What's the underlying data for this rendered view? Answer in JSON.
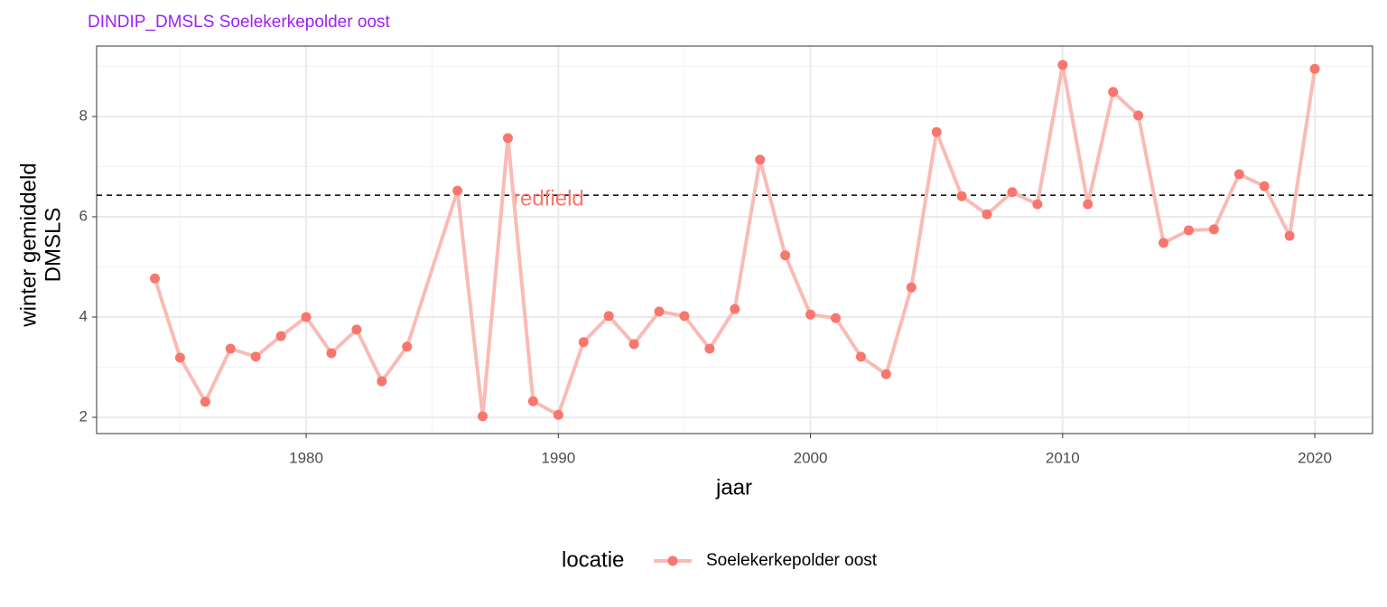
{
  "chart_data": {
    "type": "line",
    "title": "DINDIP_DMSLS Soelekerkepolder oost",
    "xlabel": "jaar",
    "ylabel": [
      "winter gemiddeld",
      "DMSLS"
    ],
    "x": [
      1974,
      1975,
      1976,
      1977,
      1978,
      1979,
      1980,
      1981,
      1982,
      1983,
      1984,
      1986,
      1987,
      1988,
      1989,
      1990,
      1991,
      1992,
      1993,
      1994,
      1995,
      1996,
      1997,
      1998,
      1999,
      2000,
      2001,
      2002,
      2003,
      2004,
      2005,
      2006,
      2007,
      2008,
      2009,
      2010,
      2011,
      2012,
      2013,
      2014,
      2015,
      2016,
      2017,
      2018,
      2019,
      2020
    ],
    "series": [
      {
        "name": "Soelekerkepolder oost",
        "color": "#F8766D",
        "line_color": "#F9BBB5",
        "values": [
          4.77,
          3.19,
          2.31,
          3.37,
          3.21,
          3.62,
          4.0,
          3.28,
          3.75,
          2.72,
          3.41,
          6.52,
          2.02,
          7.57,
          2.32,
          2.05,
          3.5,
          4.02,
          3.46,
          4.11,
          4.02,
          3.37,
          4.16,
          7.14,
          5.23,
          4.05,
          3.98,
          3.21,
          2.86,
          4.59,
          7.69,
          6.41,
          6.05,
          6.49,
          6.25,
          9.03,
          6.25,
          8.49,
          8.02,
          5.48,
          5.73,
          5.75,
          6.85,
          6.61,
          5.62,
          8.95
        ]
      }
    ],
    "xlim": [
      1971.69,
      2022.29
    ],
    "ylim": [
      1.676,
      9.405
    ],
    "xticks": [
      1980,
      1990,
      2000,
      2010,
      2020
    ],
    "yticks": [
      2,
      4,
      6,
      8
    ],
    "xminor_grid": [
      1975,
      1985,
      1995,
      2005,
      2015
    ],
    "yminor_grid": [
      3,
      5,
      7,
      9
    ],
    "grid": true,
    "reference_line": {
      "value": 6.43,
      "label": "redfield",
      "label_x": 1988.2,
      "color": "#F8766D"
    },
    "legend": {
      "title": "locatie",
      "position": "bottom"
    }
  }
}
